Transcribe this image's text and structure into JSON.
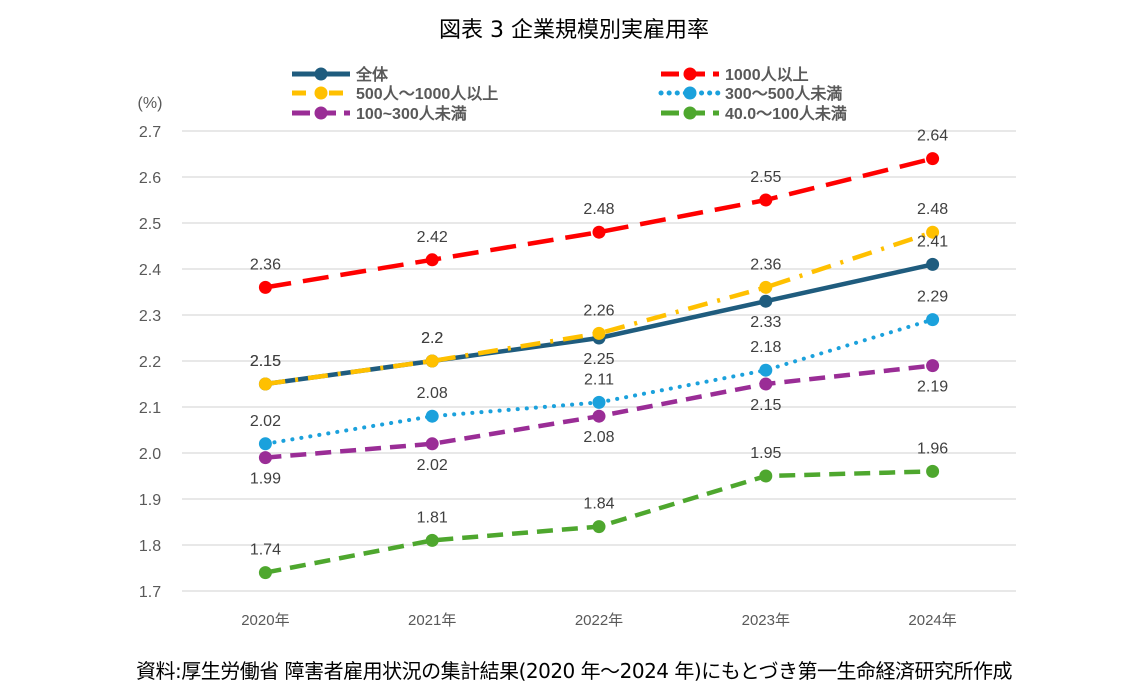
{
  "chart_data": {
    "type": "line",
    "title": "図表 3  企業規模別実雇用率",
    "ylabel": "(%)",
    "xlabel": "",
    "categories": [
      "2020年",
      "2021年",
      "2022年",
      "2023年",
      "2024年"
    ],
    "ylim": [
      1.7,
      2.7
    ],
    "yticks": [
      1.7,
      1.8,
      1.9,
      2.0,
      2.1,
      2.2,
      2.3,
      2.4,
      2.5,
      2.6,
      2.7
    ],
    "ytick_labels": [
      "1.7",
      "1.8",
      "1.9",
      "2.0",
      "2.1",
      "2.2",
      "2.3",
      "2.4",
      "2.5",
      "2.6",
      "2.7"
    ],
    "grid": true,
    "legend_position": "top",
    "series": [
      {
        "name": "全体",
        "color": "#1f5c7e",
        "style": "solid",
        "values": [
          2.15,
          2.2,
          2.25,
          2.33,
          2.41
        ],
        "labels": [
          "2.15",
          "2.2",
          "2.25",
          "2.33",
          "2.41"
        ],
        "label_pos": [
          "above",
          "above",
          "below",
          "below",
          "above"
        ]
      },
      {
        "name": "1000人以上",
        "color": "#ff0000",
        "style": "longdash",
        "values": [
          2.36,
          2.42,
          2.48,
          2.55,
          2.64
        ],
        "labels": [
          "2.36",
          "2.42",
          "2.48",
          "2.55",
          "2.64"
        ],
        "label_pos": [
          "above",
          "above",
          "above",
          "above",
          "above"
        ]
      },
      {
        "name": "500人～1000人以上",
        "color": "#ffc000",
        "style": "dashdot",
        "values": [
          2.15,
          2.2,
          2.26,
          2.36,
          2.48
        ],
        "labels": [
          "2.15",
          "2.2",
          "2.26",
          "2.36",
          "2.48"
        ],
        "label_pos": [
          "above",
          "above",
          "above",
          "above",
          "above"
        ]
      },
      {
        "name": "300～500人未満",
        "color": "#1ba1dc",
        "style": "dotted",
        "values": [
          2.02,
          2.08,
          2.11,
          2.18,
          2.29
        ],
        "labels": [
          "2.02",
          "2.08",
          "2.11",
          "2.18",
          "2.29"
        ],
        "label_pos": [
          "above",
          "above",
          "above",
          "above",
          "above"
        ]
      },
      {
        "name": "100~300人未満",
        "color": "#9a2d96",
        "style": "dash",
        "values": [
          1.99,
          2.02,
          2.08,
          2.15,
          2.19
        ],
        "labels": [
          "1.99",
          "2.02",
          "2.08",
          "2.15",
          "2.19"
        ],
        "label_pos": [
          "below",
          "below",
          "below",
          "below",
          "below"
        ]
      },
      {
        "name": "40.0～100人未満",
        "color": "#4ea72e",
        "style": "dash",
        "values": [
          1.74,
          1.81,
          1.84,
          1.95,
          1.96
        ],
        "labels": [
          "1.74",
          "1.81",
          "1.84",
          "1.95",
          "1.96"
        ],
        "label_pos": [
          "above",
          "above",
          "above",
          "above",
          "above"
        ]
      }
    ]
  },
  "source_note": "資料:厚生労働省  障害者雇用状況の集計結果(2020 年～2024 年)にもとづき第一生命経済研究所作成"
}
